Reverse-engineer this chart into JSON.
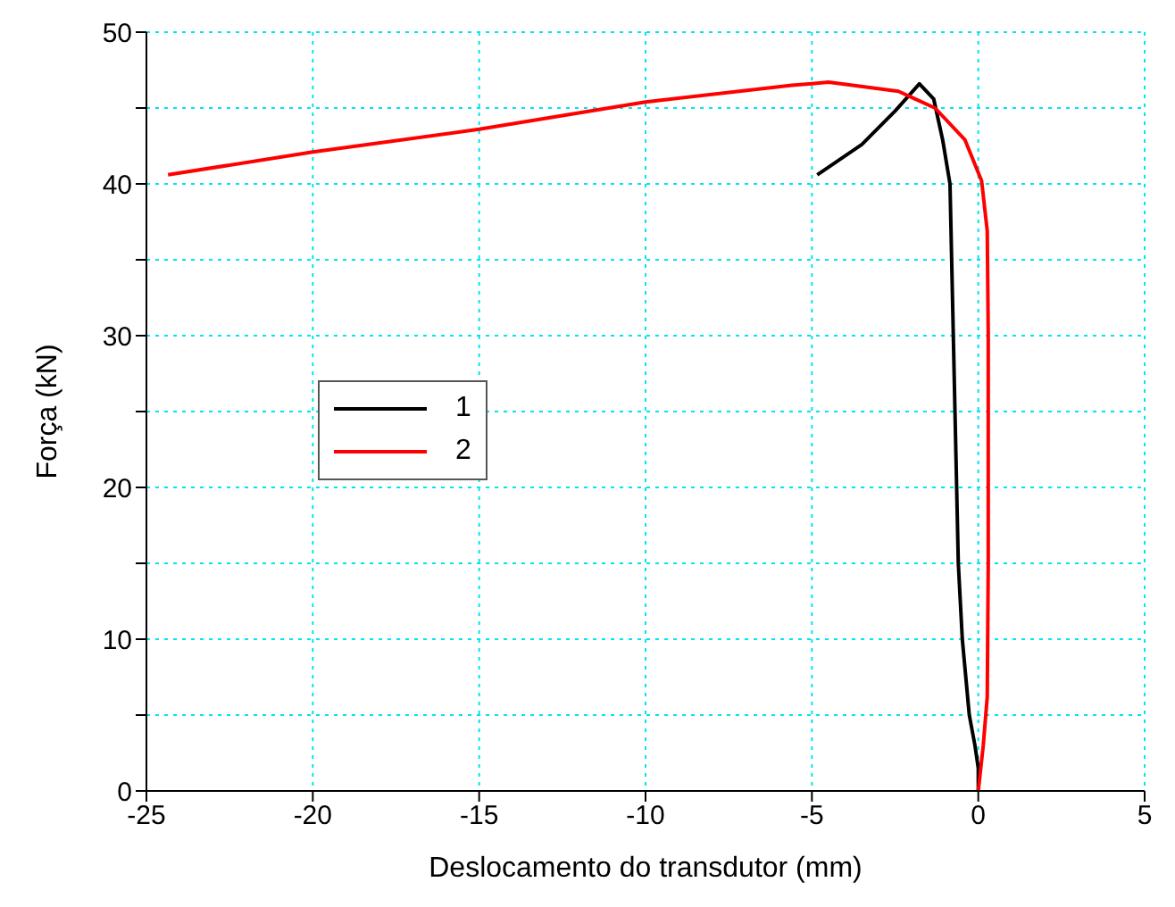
{
  "chart_data": {
    "type": "line",
    "xlabel": "Deslocamento do transdutor (mm)",
    "ylabel": "Força (kN)",
    "xlim": [
      -25,
      5
    ],
    "xticks": [
      -25,
      -20,
      -15,
      -10,
      -5,
      0,
      5
    ],
    "ylim": [
      0,
      50
    ],
    "yticks": [
      0,
      {
        "value": 5,
        "label": null
      },
      10,
      {
        "value": 15,
        "label": null
      },
      20,
      {
        "value": 25,
        "label": null
      },
      30,
      {
        "value": 35,
        "label": null
      },
      40,
      {
        "value": 45,
        "label": null
      },
      50
    ],
    "grid": true,
    "legend": "left",
    "marker": "none",
    "line_style": "solid",
    "series": [
      {
        "name": "1",
        "color": "#000000",
        "x": [
          -4.84,
          -3.5,
          -2.5,
          -1.77,
          -1.34,
          -1.07,
          -0.85,
          -0.8,
          -0.7,
          -0.6,
          -0.48,
          -0.27,
          -0.1,
          0,
          0
        ],
        "values": [
          40.6,
          42.6,
          44.8,
          46.6,
          45.6,
          42.9,
          40,
          35,
          25,
          15,
          10,
          5,
          3,
          1.5,
          0
        ]
      },
      {
        "name": "2",
        "color": "#ff0000",
        "x": [
          -24.35,
          -20,
          -15,
          -10,
          -5.6,
          -5,
          -4.5,
          -2.4,
          -1.3,
          -0.4,
          0.1,
          0.27,
          0.3,
          0.3,
          0.27,
          0.15,
          0
        ],
        "values": [
          40.6,
          42.1,
          43.6,
          45.4,
          46.5,
          46.6,
          46.7,
          46.1,
          45,
          42.9,
          40.2,
          36.9,
          30,
          15,
          6.2,
          3,
          0
        ]
      }
    ]
  }
}
